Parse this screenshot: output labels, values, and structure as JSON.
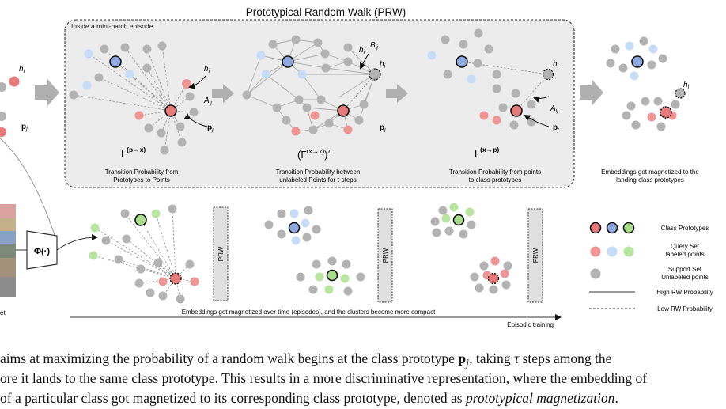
{
  "figure": {
    "title": "Prototypical Random Walk (PRW)",
    "box_label": "Inside a mini-batch episode",
    "stage1": {
      "formula_main": "Γ",
      "formula_sup": "(p→x)",
      "desc_line1": "Transition Probability from",
      "desc_line2": "Prototypes to Points"
    },
    "stage2": {
      "formula_main": "(Γ",
      "formula_sup": "(x→x)",
      "formula_close": ")",
      "formula_tau": "τ",
      "desc_line1": "Transition Probability between",
      "desc_line2": "unlabeled Points for  τ  steps"
    },
    "stage3": {
      "formula_main": "Γ",
      "formula_sup": "(x→p)",
      "desc_line1": "Transition Probability from points",
      "desc_line2": "to class prototypes"
    },
    "result": {
      "desc_line1": "Embeddings got magnetized to the",
      "desc_line2": "landing class prototypes"
    },
    "labels": {
      "h_i": "h",
      "h_sub": "i",
      "p_j": "p",
      "p_sub": "j",
      "A_ij": "A",
      "A_sub": "ij",
      "B_ij": "B",
      "B_sub": "ij"
    },
    "phi": "Φ(·)",
    "prw_box": "PRW",
    "timeline_text": "Embeddings got magnetized over time (episodes), and the clusters become more compact",
    "episodic_training": "Episodic training",
    "left_cut_label": "et",
    "legend": {
      "class_prototypes": "Class Prototypes",
      "query_line1": "Query Set",
      "query_line2": "labeled points",
      "support_line1": "Support Set",
      "support_line2": "Unlabeled points",
      "high_rw": "High RW Probability",
      "low_rw": "Low RW Probability"
    },
    "colors": {
      "red": "#e67a7a",
      "blue": "#8fa9e0",
      "green": "#a8dd8c",
      "light_blue": "#c6dcf7",
      "light_green": "#b8e6a0",
      "light_red": "#ef9595",
      "gray": "#b3b3b3",
      "box_fill": "#ececec"
    }
  },
  "caption": {
    "line1_a": "aims at maximizing the probability of a random walk begins at the class prototype ",
    "line1_p": "p",
    "line1_sub": "j",
    "line1_b": ", taking ",
    "line1_tau": "τ",
    "line1_c": " steps among the",
    "line2": "ore it lands to the same class prototype. This results in a more discriminative representation, where the embedding of",
    "line3_a": "of a particular class got magnetized to its corresponding class prototype, denoted as ",
    "line3_em": "prototypical magnetization",
    "line3_b": "."
  }
}
